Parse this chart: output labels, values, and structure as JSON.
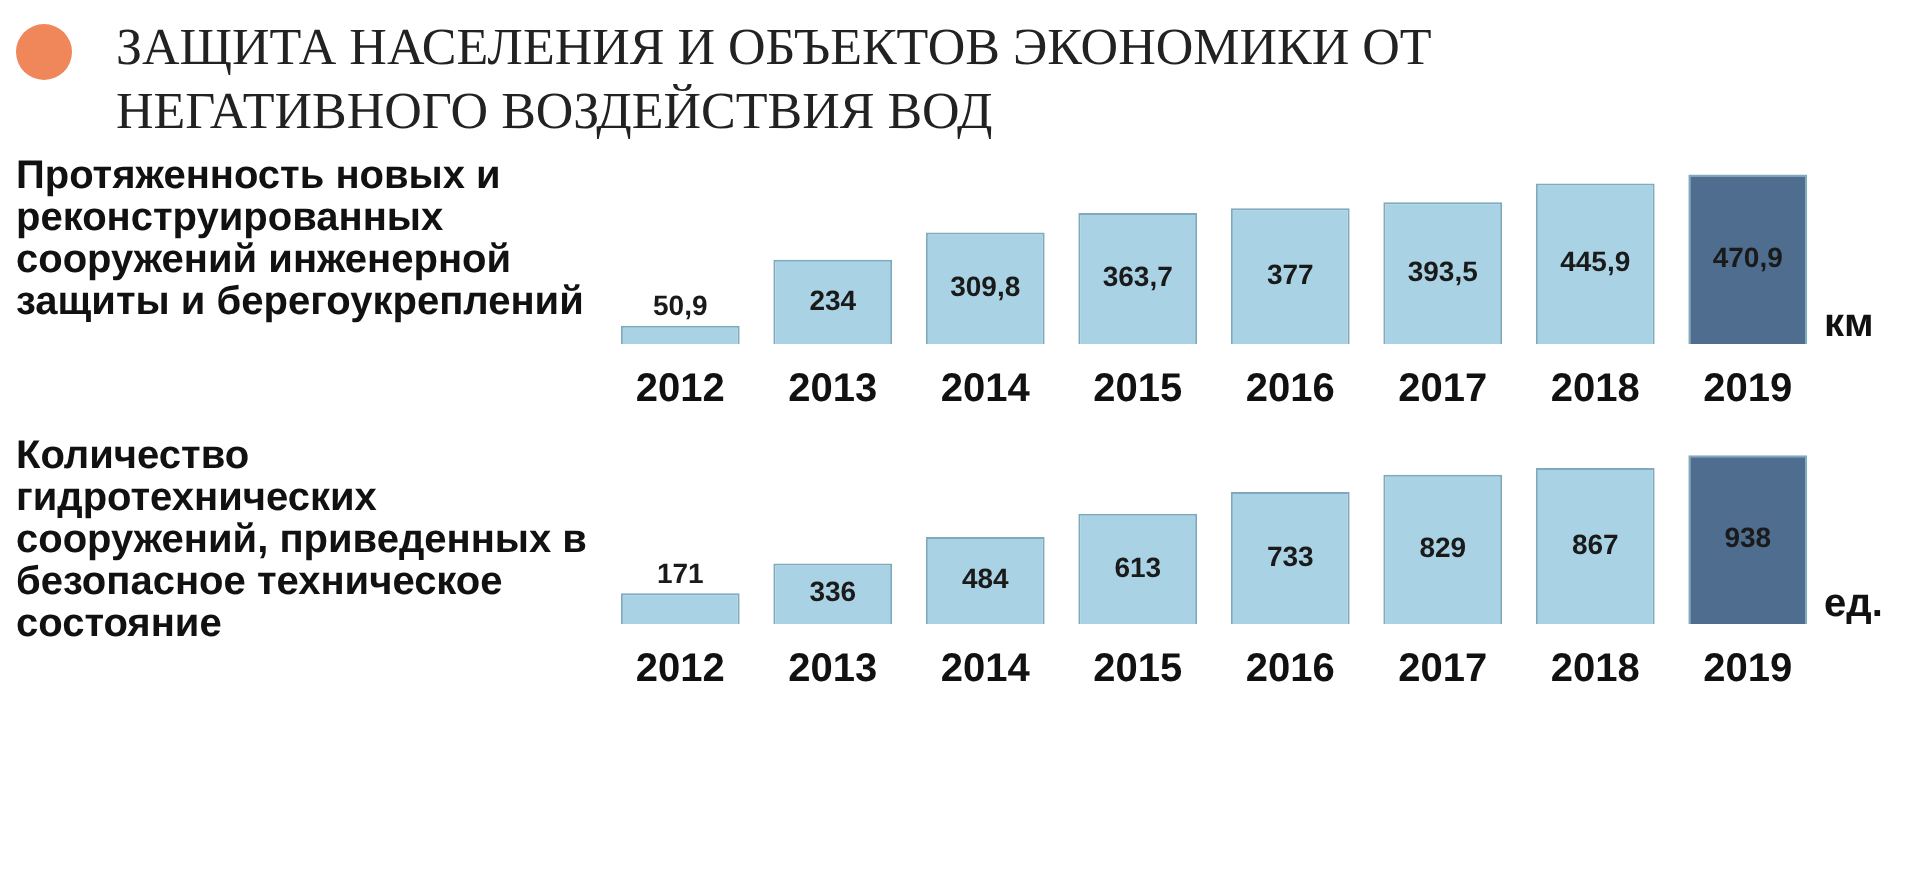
{
  "chart_data": [
    {
      "type": "bar",
      "title": "ЗАЩИТА НАСЕЛЕНИЯ И ОБЪЕКТОВ ЭКОНОМИКИ ОТ НЕГАТИВНОГО ВОЗДЕЙСТВИЯ ВОД",
      "ylabel": "Протяженность новых и реконструированных сооружений инженерной защиты и берегоукреплений",
      "categories": [
        "2012",
        "2013",
        "2014",
        "2015",
        "2016",
        "2017",
        "2018",
        "2019"
      ],
      "values": [
        50.9,
        234,
        309.8,
        363.7,
        377,
        393.5,
        445.9,
        470.9
      ],
      "value_labels": [
        "50,9",
        "234",
        "309,8",
        "363,7",
        "377",
        "393,5",
        "445,9",
        "470,9"
      ],
      "colors": [
        "#a9d3e5",
        "#a9d3e5",
        "#a9d3e5",
        "#a9d3e5",
        "#a9d3e5",
        "#a9d3e5",
        "#a9d3e5",
        "#4e6d8f"
      ],
      "annotations": [
        "км"
      ]
    },
    {
      "type": "bar",
      "ylabel": "Количество гидротехнических сооружений, приведенных в безопасное техническое состояние",
      "categories": [
        "2012",
        "2013",
        "2014",
        "2015",
        "2016",
        "2017",
        "2018",
        "2019"
      ],
      "values": [
        171,
        336,
        484,
        613,
        733,
        829,
        867,
        938
      ],
      "value_labels": [
        "171",
        "336",
        "484",
        "613",
        "733",
        "829",
        "867",
        "938"
      ],
      "colors": [
        "#a9d3e5",
        "#a9d3e5",
        "#a9d3e5",
        "#a9d3e5",
        "#a9d3e5",
        "#a9d3e5",
        "#a9d3e5",
        "#4e6d8f"
      ],
      "annotations": [
        "ед."
      ]
    }
  ]
}
